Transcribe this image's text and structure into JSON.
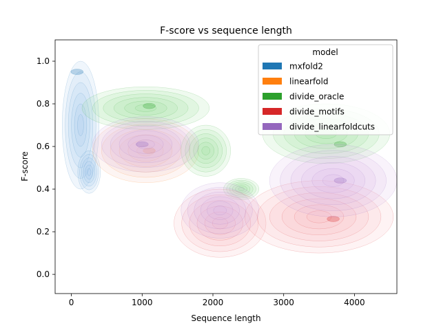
{
  "chart_data": {
    "type": "kde-contour",
    "title": "F-score vs sequence length",
    "xlabel": "Sequence length",
    "ylabel": "F-score",
    "xlim": [
      -230,
      4600
    ],
    "ylim": [
      -0.09,
      1.1
    ],
    "xticks": [
      0,
      1000,
      2000,
      3000,
      4000
    ],
    "yticks": [
      0.0,
      0.2,
      0.4,
      0.6,
      0.8,
      1.0
    ],
    "grid": false,
    "legend": {
      "title": "model",
      "placement": "top-right",
      "entries": [
        "mxfold2",
        "linearfold",
        "divide_oracle",
        "divide_motifs",
        "divide_linearfoldcuts"
      ]
    },
    "series": [
      {
        "name": "mxfold2",
        "color": "#1f77b4",
        "fill": "#a9c8f0",
        "peaks": [
          {
            "x": 80,
            "y": 0.95
          }
        ],
        "regions": [
          {
            "x": 130,
            "y": 0.7,
            "rx": 260,
            "ry": 0.3
          },
          {
            "x": 250,
            "y": 0.48,
            "rx": 160,
            "ry": 0.1
          }
        ]
      },
      {
        "name": "linearfold",
        "color": "#ff7f0e",
        "fill": "#f5c6b8",
        "peaks": [
          {
            "x": 1100,
            "y": 0.58
          }
        ],
        "regions": [
          {
            "x": 1050,
            "y": 0.58,
            "rx": 750,
            "ry": 0.15
          }
        ]
      },
      {
        "name": "divide_oracle",
        "color": "#2ca02c",
        "fill": "#9ee39e",
        "peaks": [
          {
            "x": 1100,
            "y": 0.79
          },
          {
            "x": 3800,
            "y": 0.61
          }
        ],
        "regions": [
          {
            "x": 1050,
            "y": 0.78,
            "rx": 900,
            "ry": 0.1
          },
          {
            "x": 1900,
            "y": 0.58,
            "rx": 350,
            "ry": 0.12
          },
          {
            "x": 2400,
            "y": 0.4,
            "rx": 250,
            "ry": 0.05
          },
          {
            "x": 3600,
            "y": 0.66,
            "rx": 900,
            "ry": 0.14
          }
        ]
      },
      {
        "name": "divide_motifs",
        "color": "#d62728",
        "fill": "#f7b9bc",
        "peaks": [
          {
            "x": 3700,
            "y": 0.26
          }
        ],
        "regions": [
          {
            "x": 2100,
            "y": 0.24,
            "rx": 650,
            "ry": 0.16
          },
          {
            "x": 3500,
            "y": 0.27,
            "rx": 1050,
            "ry": 0.17
          }
        ]
      },
      {
        "name": "divide_linearfoldcuts",
        "color": "#9467bd",
        "fill": "#d9b8e6",
        "peaks": [
          {
            "x": 1000,
            "y": 0.61
          },
          {
            "x": 3800,
            "y": 0.44
          }
        ],
        "regions": [
          {
            "x": 1050,
            "y": 0.61,
            "rx": 750,
            "ry": 0.13
          },
          {
            "x": 2100,
            "y": 0.3,
            "rx": 550,
            "ry": 0.13
          },
          {
            "x": 3700,
            "y": 0.44,
            "rx": 900,
            "ry": 0.17
          }
        ]
      }
    ]
  }
}
